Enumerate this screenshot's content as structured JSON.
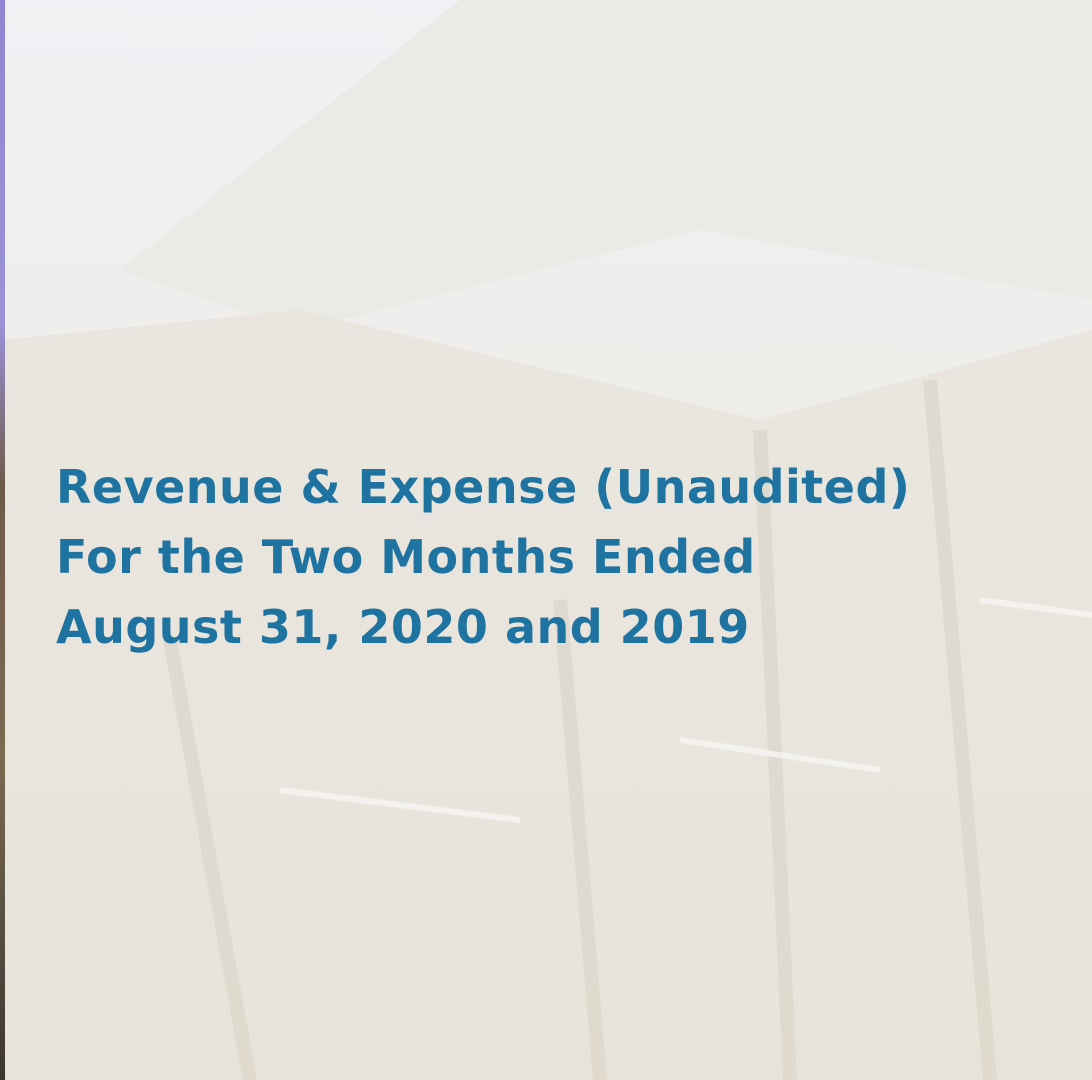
{
  "title": {
    "lines": [
      "Revenue & Expense (Unaudited)",
      "For the Two Months Ended",
      "August 31, 2020 and 2019"
    ]
  }
}
